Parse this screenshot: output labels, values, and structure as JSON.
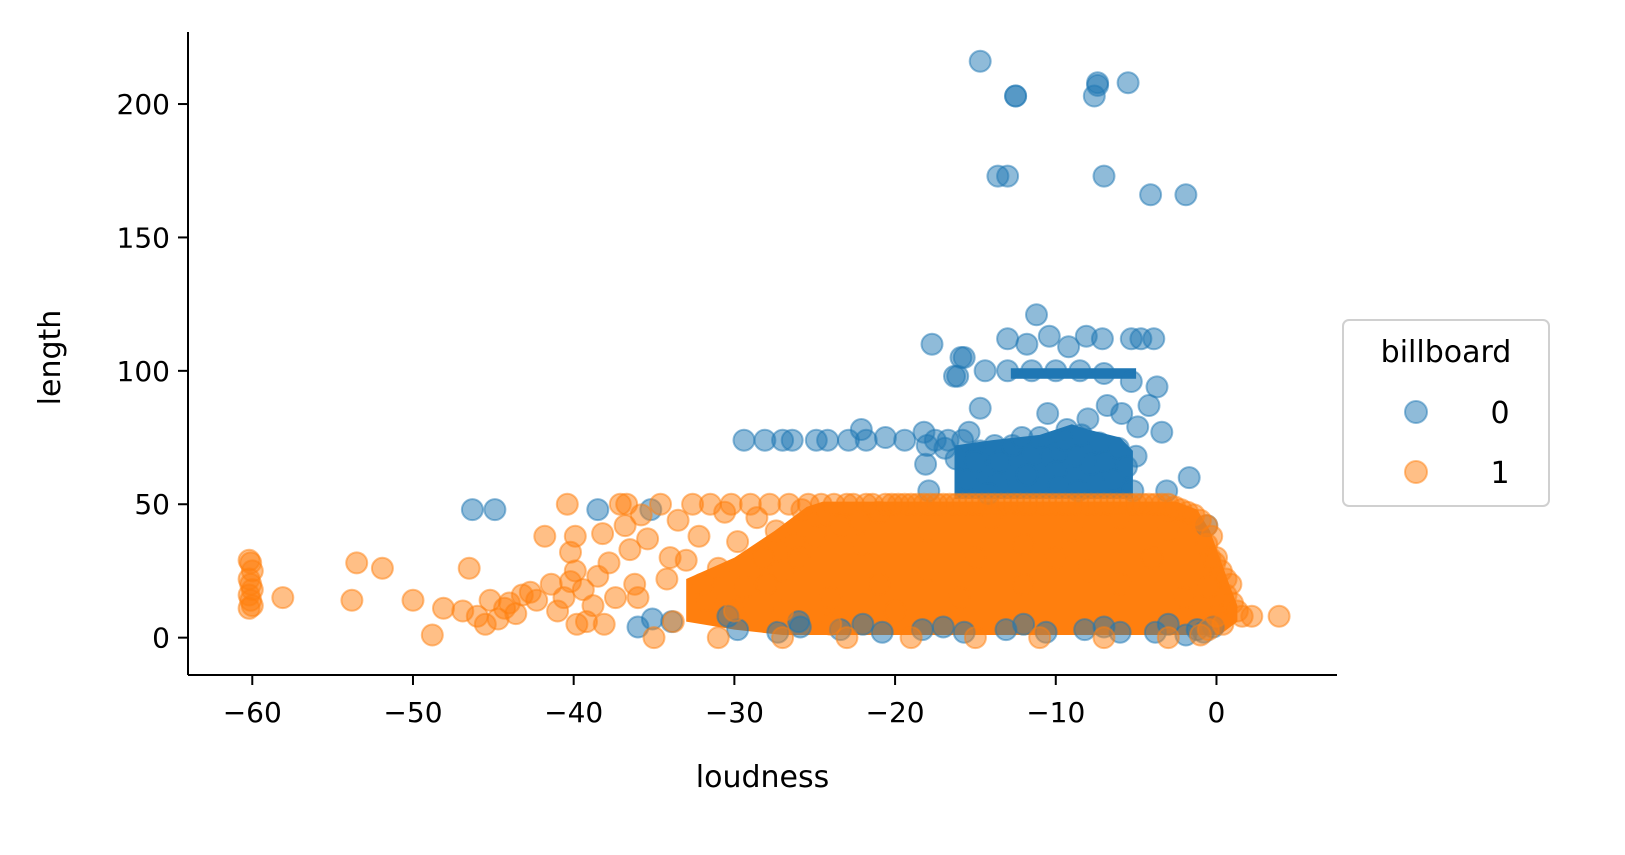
{
  "chart_data": {
    "type": "scatter",
    "xlabel": "loudness",
    "ylabel": "length",
    "xlim": [
      -64,
      7.5
    ],
    "ylim": [
      -14,
      227
    ],
    "x_ticks": [
      -60,
      -50,
      -40,
      -30,
      -20,
      -10,
      0
    ],
    "x_tick_labels": [
      "−60",
      "−50",
      "−40",
      "−30",
      "−20",
      "−10",
      "0"
    ],
    "y_ticks": [
      0,
      50,
      100,
      150,
      200
    ],
    "y_tick_labels": [
      "0",
      "50",
      "100",
      "150",
      "200"
    ],
    "grid": false,
    "legend": {
      "title": "billboard",
      "placement": "center-right outside"
    },
    "series": [
      {
        "name": "0",
        "color": "#1f77b4",
        "points": [
          [
            -14.7,
            216
          ],
          [
            -12.5,
            203
          ],
          [
            -12.5,
            203
          ],
          [
            -7.6,
            203
          ],
          [
            -7.4,
            208
          ],
          [
            -7.4,
            207
          ],
          [
            -5.5,
            208
          ],
          [
            -13.6,
            173
          ],
          [
            -13.0,
            173
          ],
          [
            -7.0,
            173
          ],
          [
            -4.1,
            166
          ],
          [
            -1.9,
            166
          ],
          [
            -11.2,
            121
          ],
          [
            -13.0,
            112
          ],
          [
            -11.8,
            110
          ],
          [
            -10.4,
            113
          ],
          [
            -8.1,
            113
          ],
          [
            -7.1,
            112
          ],
          [
            -5.3,
            112
          ],
          [
            -4.7,
            112
          ],
          [
            -3.9,
            112
          ],
          [
            -17.7,
            110
          ],
          [
            -15.9,
            105
          ],
          [
            -15.7,
            105
          ],
          [
            -9.2,
            109
          ],
          [
            -16.3,
            98
          ],
          [
            -16.1,
            98
          ],
          [
            -14.4,
            100
          ],
          [
            -13.0,
            100
          ],
          [
            -11.5,
            100
          ],
          [
            -10.0,
            100
          ],
          [
            -8.5,
            100
          ],
          [
            -7.0,
            99
          ],
          [
            -5.3,
            96
          ],
          [
            -3.7,
            94
          ],
          [
            -4.2,
            87
          ],
          [
            -14.7,
            86
          ],
          [
            -6.8,
            87
          ],
          [
            -5.9,
            84
          ],
          [
            -10.5,
            84
          ],
          [
            -8.0,
            82
          ],
          [
            -9.3,
            78
          ],
          [
            -4.9,
            79
          ],
          [
            -3.4,
            77
          ],
          [
            -5.0,
            68
          ],
          [
            -29.4,
            74
          ],
          [
            -28.1,
            74
          ],
          [
            -27.0,
            74
          ],
          [
            -26.4,
            74
          ],
          [
            -24.9,
            74
          ],
          [
            -24.2,
            74
          ],
          [
            -22.9,
            74
          ],
          [
            -21.8,
            74
          ],
          [
            -20.6,
            75
          ],
          [
            -19.4,
            74
          ],
          [
            -22.1,
            78
          ],
          [
            -18.2,
            77
          ],
          [
            -18.0,
            72
          ],
          [
            -17.5,
            74
          ],
          [
            -16.7,
            74
          ],
          [
            -16.9,
            71
          ],
          [
            -15.8,
            74
          ],
          [
            -15.4,
            77
          ],
          [
            -14.7,
            70
          ],
          [
            -13.8,
            72
          ],
          [
            -13.5,
            66
          ],
          [
            -12.7,
            72
          ],
          [
            -12.1,
            75
          ],
          [
            -11.4,
            69
          ],
          [
            -11.0,
            75
          ],
          [
            -10.3,
            68
          ],
          [
            -9.7,
            70
          ],
          [
            -9.4,
            74
          ],
          [
            -8.7,
            68
          ],
          [
            -8.4,
            76
          ],
          [
            -7.8,
            65
          ],
          [
            -7.3,
            73
          ],
          [
            -6.9,
            66
          ],
          [
            -6.1,
            71
          ],
          [
            -5.6,
            64
          ],
          [
            -16.2,
            67
          ],
          [
            -18.1,
            65
          ],
          [
            -15.0,
            66
          ],
          [
            -11.8,
            61
          ],
          [
            -10.0,
            62
          ],
          [
            -1.7,
            60
          ],
          [
            -15.5,
            59
          ],
          [
            -13.6,
            58
          ],
          [
            -9.8,
            57
          ],
          [
            -6.4,
            59
          ],
          [
            -17.9,
            55
          ],
          [
            -14.2,
            54
          ],
          [
            -8.6,
            55
          ],
          [
            -5.2,
            55
          ],
          [
            -3.1,
            55
          ],
          [
            -46.3,
            48
          ],
          [
            -44.9,
            48
          ],
          [
            -38.5,
            48
          ],
          [
            -35.2,
            48
          ],
          [
            -0.6,
            42
          ],
          [
            -35.1,
            7
          ],
          [
            -33.9,
            6
          ],
          [
            -29.8,
            3
          ],
          [
            -27.3,
            2
          ],
          [
            -25.9,
            4
          ],
          [
            -23.4,
            3
          ],
          [
            -20.8,
            2
          ],
          [
            -18.3,
            3
          ],
          [
            -15.7,
            2
          ],
          [
            -13.1,
            3
          ],
          [
            -10.6,
            2
          ],
          [
            -8.2,
            3
          ],
          [
            -6.0,
            2
          ],
          [
            -3.8,
            2
          ],
          [
            -1.9,
            1
          ],
          [
            -0.8,
            2
          ],
          [
            -0.2,
            4
          ],
          [
            -1.2,
            3
          ],
          [
            -26.0,
            6
          ],
          [
            -22.0,
            5
          ],
          [
            -17.0,
            4
          ],
          [
            -12.0,
            5
          ],
          [
            -7.0,
            4
          ],
          [
            -3.0,
            5
          ],
          [
            -30.4,
            8
          ],
          [
            -36.0,
            4
          ]
        ]
      },
      {
        "name": "1",
        "color": "#ff7f0e",
        "points": [
          [
            -60.2,
            29
          ],
          [
            -60.1,
            28
          ],
          [
            -60.0,
            25
          ],
          [
            -60.2,
            22
          ],
          [
            -60.1,
            20
          ],
          [
            -60.0,
            18
          ],
          [
            -60.2,
            16
          ],
          [
            -60.1,
            14
          ],
          [
            -60.0,
            12
          ],
          [
            -60.2,
            11
          ],
          [
            -58.1,
            15
          ],
          [
            -53.5,
            28
          ],
          [
            -53.8,
            14
          ],
          [
            -51.9,
            26
          ],
          [
            -50.0,
            14
          ],
          [
            -48.8,
            1
          ],
          [
            -48.1,
            11
          ],
          [
            -46.5,
            26
          ],
          [
            -46.9,
            10
          ],
          [
            -46.0,
            8
          ],
          [
            -45.5,
            5
          ],
          [
            -45.2,
            14
          ],
          [
            -44.7,
            7
          ],
          [
            -44.3,
            11
          ],
          [
            -44.0,
            13
          ],
          [
            -43.6,
            9
          ],
          [
            -43.2,
            16
          ],
          [
            -42.7,
            17
          ],
          [
            -42.3,
            14
          ],
          [
            -41.8,
            38
          ],
          [
            -41.4,
            20
          ],
          [
            -41.0,
            10
          ],
          [
            -40.6,
            15
          ],
          [
            -40.2,
            21
          ],
          [
            -39.9,
            38
          ],
          [
            -39.8,
            5
          ],
          [
            -40.2,
            32
          ],
          [
            -39.9,
            25
          ],
          [
            -39.4,
            18
          ],
          [
            -39.2,
            6
          ],
          [
            -38.8,
            12
          ],
          [
            -38.5,
            23
          ],
          [
            -38.2,
            39
          ],
          [
            -38.1,
            5
          ],
          [
            -37.8,
            28
          ],
          [
            -37.4,
            15
          ],
          [
            -37.1,
            50
          ],
          [
            -36.7,
            50
          ],
          [
            -36.5,
            33
          ],
          [
            -36.8,
            42
          ],
          [
            -36.2,
            20
          ],
          [
            -35.8,
            46
          ],
          [
            -35.4,
            37
          ],
          [
            -35.0,
            0
          ],
          [
            -34.6,
            50
          ],
          [
            -34.2,
            22
          ],
          [
            -33.8,
            6
          ],
          [
            -33.5,
            44
          ],
          [
            -33.0,
            29
          ],
          [
            -32.6,
            50
          ],
          [
            -32.2,
            38
          ],
          [
            -31.8,
            14
          ],
          [
            -31.5,
            50
          ],
          [
            -31.0,
            26
          ],
          [
            -30.6,
            47
          ],
          [
            -30.2,
            50
          ],
          [
            -29.8,
            36
          ],
          [
            -29.4,
            19
          ],
          [
            -29.0,
            50
          ],
          [
            -40.4,
            50
          ],
          [
            -31.0,
            0
          ],
          [
            -27.0,
            0
          ],
          [
            -23.0,
            0
          ],
          [
            -19.0,
            0
          ],
          [
            -15.0,
            0
          ],
          [
            -11.0,
            0
          ],
          [
            -7.0,
            0
          ],
          [
            -3.0,
            0
          ],
          [
            -28.6,
            45
          ],
          [
            -28.2,
            30
          ],
          [
            -27.8,
            50
          ],
          [
            -27.4,
            40
          ],
          [
            -27.0,
            25
          ],
          [
            -26.6,
            50
          ],
          [
            -26.2,
            35
          ],
          [
            -25.8,
            48
          ],
          [
            -25.4,
            50
          ],
          [
            -25.0,
            38
          ],
          [
            -24.6,
            50
          ],
          [
            -24.2,
            46
          ],
          [
            -23.8,
            50
          ],
          [
            -23.4,
            42
          ],
          [
            -23.0,
            50
          ],
          [
            -22.6,
            50
          ],
          [
            -22.2,
            44
          ],
          [
            -21.8,
            50
          ],
          [
            -21.4,
            50
          ],
          [
            -21.0,
            47
          ],
          [
            -20.6,
            50
          ],
          [
            -20.2,
            50
          ],
          [
            -19.8,
            50
          ],
          [
            -19.4,
            50
          ],
          [
            -19.0,
            50
          ],
          [
            -18.6,
            50
          ],
          [
            -18.2,
            50
          ],
          [
            -17.8,
            50
          ],
          [
            -17.4,
            50
          ],
          [
            -17.0,
            50
          ],
          [
            -16.6,
            50
          ],
          [
            -16.2,
            50
          ],
          [
            -15.8,
            50
          ],
          [
            -15.4,
            50
          ],
          [
            -15.0,
            50
          ],
          [
            -14.6,
            50
          ],
          [
            -14.2,
            50
          ],
          [
            -13.8,
            50
          ],
          [
            -13.4,
            50
          ],
          [
            -13.0,
            50
          ],
          [
            -12.6,
            50
          ],
          [
            -12.2,
            50
          ],
          [
            -11.8,
            50
          ],
          [
            -11.4,
            50
          ],
          [
            -11.0,
            50
          ],
          [
            -10.6,
            50
          ],
          [
            -10.2,
            50
          ],
          [
            -9.8,
            50
          ],
          [
            -9.4,
            50
          ],
          [
            -9.0,
            50
          ],
          [
            -8.6,
            50
          ],
          [
            -8.2,
            50
          ],
          [
            -7.8,
            50
          ],
          [
            -7.4,
            50
          ],
          [
            -7.0,
            50
          ],
          [
            -6.6,
            50
          ],
          [
            -6.2,
            50
          ],
          [
            -5.8,
            50
          ],
          [
            -5.4,
            50
          ],
          [
            -5.0,
            50
          ],
          [
            -4.6,
            50
          ],
          [
            -4.2,
            50
          ],
          [
            -3.8,
            50
          ],
          [
            -3.4,
            50
          ],
          [
            -3.0,
            50
          ],
          [
            -2.6,
            49
          ],
          [
            -2.2,
            48
          ],
          [
            -1.8,
            47
          ],
          [
            -1.4,
            46
          ],
          [
            -1.0,
            44
          ],
          [
            -0.6,
            42
          ],
          [
            -0.3,
            38
          ],
          [
            -0.6,
            35
          ],
          [
            -0.4,
            30
          ],
          [
            -0.1,
            28
          ],
          [
            0.3,
            25
          ],
          [
            0.6,
            22
          ],
          [
            0.9,
            20
          ],
          [
            0.6,
            16
          ],
          [
            1.0,
            13
          ],
          [
            1.3,
            10
          ],
          [
            1.6,
            8
          ],
          [
            0.0,
            8
          ],
          [
            0.4,
            5
          ],
          [
            -0.5,
            3
          ],
          [
            -1.0,
            1
          ],
          [
            2.2,
            8
          ],
          [
            3.9,
            8
          ],
          [
            -0.5,
            19
          ],
          [
            0.0,
            30
          ],
          [
            -27.0,
            10
          ],
          [
            -24.0,
            15
          ],
          [
            -21.0,
            20
          ],
          [
            -18.0,
            25
          ],
          [
            -15.0,
            30
          ],
          [
            -12.0,
            35
          ],
          [
            -9.0,
            40
          ],
          [
            -6.0,
            45
          ],
          [
            -3.0,
            40
          ],
          [
            -26.0,
            30
          ],
          [
            -22.0,
            35
          ],
          [
            -18.0,
            40
          ],
          [
            -14.0,
            45
          ],
          [
            -10.0,
            30
          ],
          [
            -6.0,
            20
          ],
          [
            -2.0,
            15
          ],
          [
            -28.0,
            20
          ],
          [
            -24.0,
            5
          ],
          [
            -20.0,
            10
          ],
          [
            -16.0,
            15
          ],
          [
            -12.0,
            20
          ],
          [
            -8.0,
            25
          ],
          [
            -4.0,
            30
          ],
          [
            -30.0,
            10
          ],
          [
            -32.0,
            20
          ],
          [
            -34.0,
            30
          ],
          [
            -36.0,
            15
          ]
        ]
      }
    ]
  }
}
